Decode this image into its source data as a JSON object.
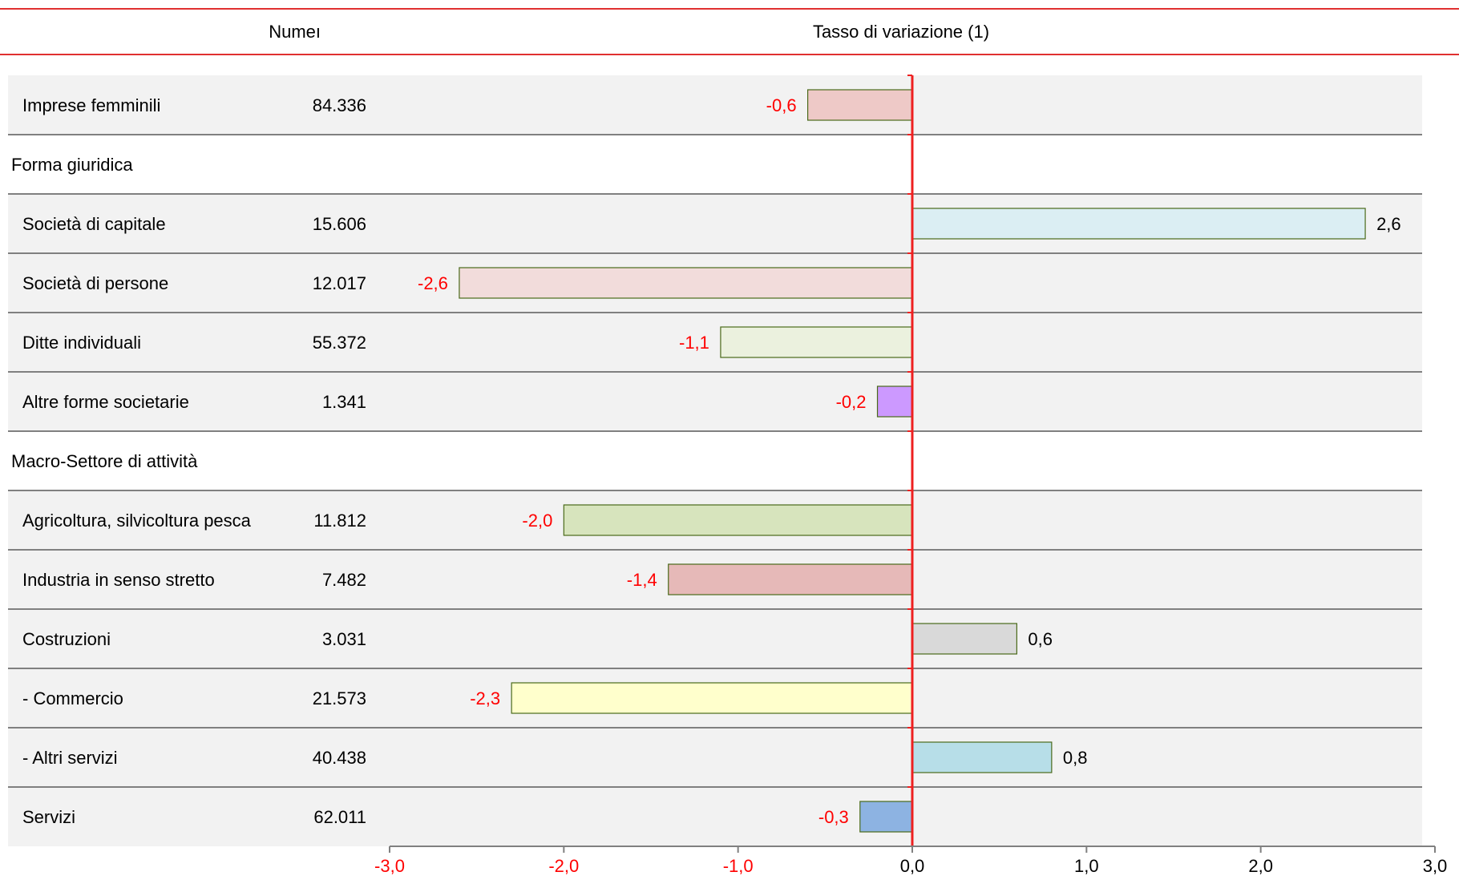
{
  "header": {
    "number_label": "Numeı",
    "rate_label": "Tasso di variazione (1)"
  },
  "colors": {
    "rule": "#e03030",
    "zero_line": "#ee2020",
    "negative_text": "#ff0000",
    "positive_text": "#000000",
    "band_bg": "#f2f2f2",
    "separator": "#808080",
    "bar_border": "#4a6a1a"
  },
  "chart_data": {
    "type": "bar",
    "orientation": "horizontal",
    "xlim": [
      -3.0,
      3.0
    ],
    "x_ticks": [
      "-3,0",
      "-2,0",
      "-1,0",
      "0,0",
      "1,0",
      "2,0",
      "3,0"
    ],
    "x_tick_values": [
      -3,
      -2,
      -1,
      0,
      1,
      2,
      3
    ],
    "rows": [
      {
        "label": "Imprese femminili",
        "number": "84.336",
        "value": -0.6,
        "value_label": "-0,6",
        "color": "#eec9c7",
        "band": true
      },
      {
        "label": "Forma giuridica",
        "number": "",
        "value": null,
        "value_label": "",
        "color": "",
        "band": false
      },
      {
        "label": "Società di capitale",
        "number": "15.606",
        "value": 2.6,
        "value_label": "2,6",
        "color": "#dbeef3",
        "band": true
      },
      {
        "label": "Società di persone",
        "number": "12.017",
        "value": -2.6,
        "value_label": "-2,6",
        "color": "#f2dcdb",
        "band": true
      },
      {
        "label": "Ditte individuali",
        "number": "55.372",
        "value": -1.1,
        "value_label": "-1,1",
        "color": "#ebf1de",
        "band": true
      },
      {
        "label": "Altre forme societarie",
        "number": "1.341",
        "value": -0.2,
        "value_label": "-0,2",
        "color": "#cc99ff",
        "band": true
      },
      {
        "label": "Macro-Settore di attività",
        "number": "",
        "value": null,
        "value_label": "",
        "color": "",
        "band": false
      },
      {
        "label": "Agricoltura, silvicoltura pesca",
        "number": "11.812",
        "value": -2.0,
        "value_label": "-2,0",
        "color": "#d7e4bd",
        "band": true
      },
      {
        "label": "Industria in senso stretto",
        "number": "7.482",
        "value": -1.4,
        "value_label": "-1,4",
        "color": "#e6b9b8",
        "band": true
      },
      {
        "label": "Costruzioni",
        "number": "3.031",
        "value": 0.6,
        "value_label": "0,6",
        "color": "#d9d9d9",
        "band": true
      },
      {
        "label": " - Commercio",
        "number": "21.573",
        "value": -2.3,
        "value_label": "-2,3",
        "color": "#ffffcc",
        "band": true
      },
      {
        "label": " - Altri servizi",
        "number": "40.438",
        "value": 0.8,
        "value_label": "0,8",
        "color": "#b7dee8",
        "band": true
      },
      {
        "label": "Servizi",
        "number": "62.011",
        "value": -0.3,
        "value_label": "-0,3",
        "color": "#8db3e2",
        "band": true
      }
    ]
  }
}
